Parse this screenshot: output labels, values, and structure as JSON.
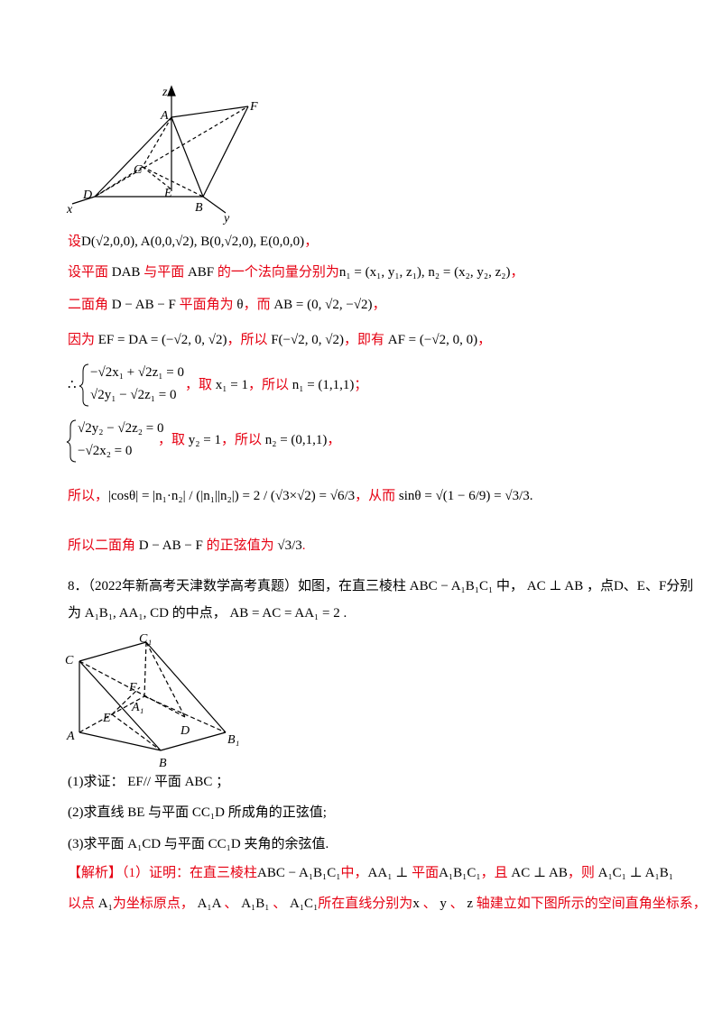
{
  "figure1": {
    "labels": [
      "z",
      "A",
      "F",
      "C",
      "E",
      "D",
      "B",
      "x",
      "y"
    ]
  },
  "figure2": {
    "labels": [
      "C",
      "C₁",
      "F",
      "A₁",
      "E",
      "D",
      "A",
      "B",
      "B₁"
    ]
  },
  "lines": [
    [
      {
        "text": "设",
        "color": "#e60012"
      },
      {
        "text": "D(√2,0,0), A(0,0,√2), B(0,√2,0), E(0,0,0)",
        "color": "#000000"
      },
      {
        "text": "，",
        "color": "#e60012"
      }
    ],
    [
      {
        "text": "设平面 ",
        "color": "#e60012"
      },
      {
        "text": "DAB",
        "color": "#000000"
      },
      {
        "text": " 与平面 ",
        "color": "#e60012"
      },
      {
        "text": "ABF",
        "color": "#000000"
      },
      {
        "text": " 的一个法向量分别为",
        "color": "#e60012"
      },
      {
        "text": "n₁ = (x₁, y₁, z₁), n₂ = (x₂, y₂, z₂)",
        "color": "#000000"
      },
      {
        "text": "，",
        "color": "#e60012"
      }
    ],
    [
      {
        "text": "二面角 ",
        "color": "#e60012"
      },
      {
        "text": "D − AB − F",
        "color": "#000000"
      },
      {
        "text": " 平面角为 ",
        "color": "#e60012"
      },
      {
        "text": "θ",
        "color": "#000000"
      },
      {
        "text": "，而 ",
        "color": "#e60012"
      },
      {
        "text": "AB = (0, √2, −√2)",
        "color": "#000000"
      },
      {
        "text": "，",
        "color": "#e60012"
      }
    ],
    [
      {
        "text": "因为 ",
        "color": "#e60012"
      },
      {
        "text": "EF = DA = (−√2, 0, √2)",
        "color": "#000000"
      },
      {
        "text": "，所以 ",
        "color": "#e60012"
      },
      {
        "text": "F(−√2, 0, √2)",
        "color": "#000000"
      },
      {
        "text": "，即有 ",
        "color": "#e60012"
      },
      {
        "text": "AF = (−√2, 0, 0)",
        "color": "#000000"
      },
      {
        "text": "，",
        "color": "#e60012"
      }
    ],
    [
      {
        "text": "∴",
        "color": "#000000"
      }
    ],
    [
      {
        "text": "−√2x₁ + √2z₁ = 0",
        "color": "#000000"
      }
    ],
    [
      {
        "text": "√2y₁ − √2z₁ = 0",
        "color": "#000000"
      }
    ],
    [
      {
        "text": "，取 ",
        "color": "#e60012"
      },
      {
        "text": "x₁ = 1",
        "color": "#000000"
      },
      {
        "text": "，所以 ",
        "color": "#e60012"
      },
      {
        "text": "n₁ = (1,1,1)",
        "color": "#000000"
      },
      {
        "text": "；",
        "color": "#e60012"
      }
    ],
    [
      {
        "text": "√2y₂ − √2z₂ = 0",
        "color": "#000000"
      }
    ],
    [
      {
        "text": "−√2x₂ = 0",
        "color": "#000000"
      }
    ],
    [
      {
        "text": "，取 ",
        "color": "#e60012"
      },
      {
        "text": "y₂ = 1",
        "color": "#000000"
      },
      {
        "text": "，所以 ",
        "color": "#e60012"
      },
      {
        "text": "n₂ = (0,1,1)",
        "color": "#000000"
      },
      {
        "text": "，",
        "color": "#e60012"
      }
    ],
    [
      {
        "text": "所以，",
        "color": "#e60012"
      },
      {
        "text": "|cosθ| = |n₁·n₂| / (|n₁||n₂|) = 2 / (√3×√2) = √6/3",
        "color": "#000000"
      },
      {
        "text": "，从而 ",
        "color": "#e60012"
      },
      {
        "text": "sinθ = √(1 − 6/9) = √3/3",
        "color": "#000000"
      },
      {
        "text": ".",
        "color": "#000000"
      }
    ],
    [
      {
        "text": "所以二面角 ",
        "color": "#e60012"
      },
      {
        "text": "D − AB − F",
        "color": "#000000"
      },
      {
        "text": " 的正弦值为 ",
        "color": "#e60012"
      },
      {
        "text": "√3/3",
        "color": "#000000"
      },
      {
        "text": ".",
        "color": "#e60012"
      }
    ],
    [
      {
        "text": "8．（2022年新高考天津数学高考真题）如图，在直三棱柱 ABC − A₁B₁C₁ 中， AC ⊥ AB ，点D、E、F分别",
        "color": "#000000"
      }
    ],
    [
      {
        "text": "为 A₁B₁, AA₁, CD 的中点， AB = AC = AA₁ = 2 .",
        "color": "#000000"
      }
    ],
    [
      {
        "text": "(1)求证： EF// 平面 ABC ；",
        "color": "#000000"
      }
    ],
    [
      {
        "text": "(2)求直线 BE 与平面 CC₁D 所成角的正弦值;",
        "color": "#000000"
      }
    ],
    [
      {
        "text": "(3)求平面 A₁CD 与平面 CC₁D 夹角的余弦值.",
        "color": "#000000"
      }
    ],
    [
      {
        "text": "【解析】（1）证明：在直三棱柱",
        "color": "#e60012"
      },
      {
        "text": "ABC − A₁B₁C₁",
        "color": "#000000"
      },
      {
        "text": "中，",
        "color": "#e60012"
      },
      {
        "text": "AA₁ ⊥ ",
        "color": "#000000"
      },
      {
        "text": "平面",
        "color": "#e60012"
      },
      {
        "text": "A₁B₁C₁",
        "color": "#000000"
      },
      {
        "text": "，且 ",
        "color": "#e60012"
      },
      {
        "text": "AC ⊥ AB",
        "color": "#000000"
      },
      {
        "text": "，则 ",
        "color": "#e60012"
      },
      {
        "text": "A₁C₁ ⊥ A₁B₁",
        "color": "#000000"
      }
    ],
    [
      {
        "text": "以点 ",
        "color": "#e60012"
      },
      {
        "text": "A₁",
        "color": "#000000"
      },
      {
        "text": "为坐标原点， ",
        "color": "#e60012"
      },
      {
        "text": "A₁A",
        "color": "#000000"
      },
      {
        "text": " 、 ",
        "color": "#e60012"
      },
      {
        "text": "A₁B₁",
        "color": "#000000"
      },
      {
        "text": " 、 ",
        "color": "#e60012"
      },
      {
        "text": "A₁C₁",
        "color": "#000000"
      },
      {
        "text": "所在直线分别为",
        "color": "#e60012"
      },
      {
        "text": "x",
        "color": "#000000"
      },
      {
        "text": " 、 ",
        "color": "#e60012"
      },
      {
        "text": "y",
        "color": "#000000"
      },
      {
        "text": " 、 ",
        "color": "#e60012"
      },
      {
        "text": "z",
        "color": "#000000"
      },
      {
        "text": " 轴建立如下图所示的空间直角坐标系，",
        "color": "#e60012"
      }
    ]
  ]
}
